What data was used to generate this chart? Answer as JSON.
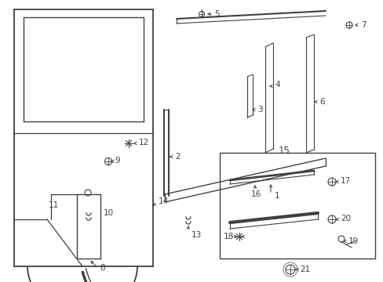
{
  "bg_color": "#ffffff",
  "line_color": "#404040",
  "fig_width": 4.89,
  "fig_height": 3.6,
  "dpi": 100
}
